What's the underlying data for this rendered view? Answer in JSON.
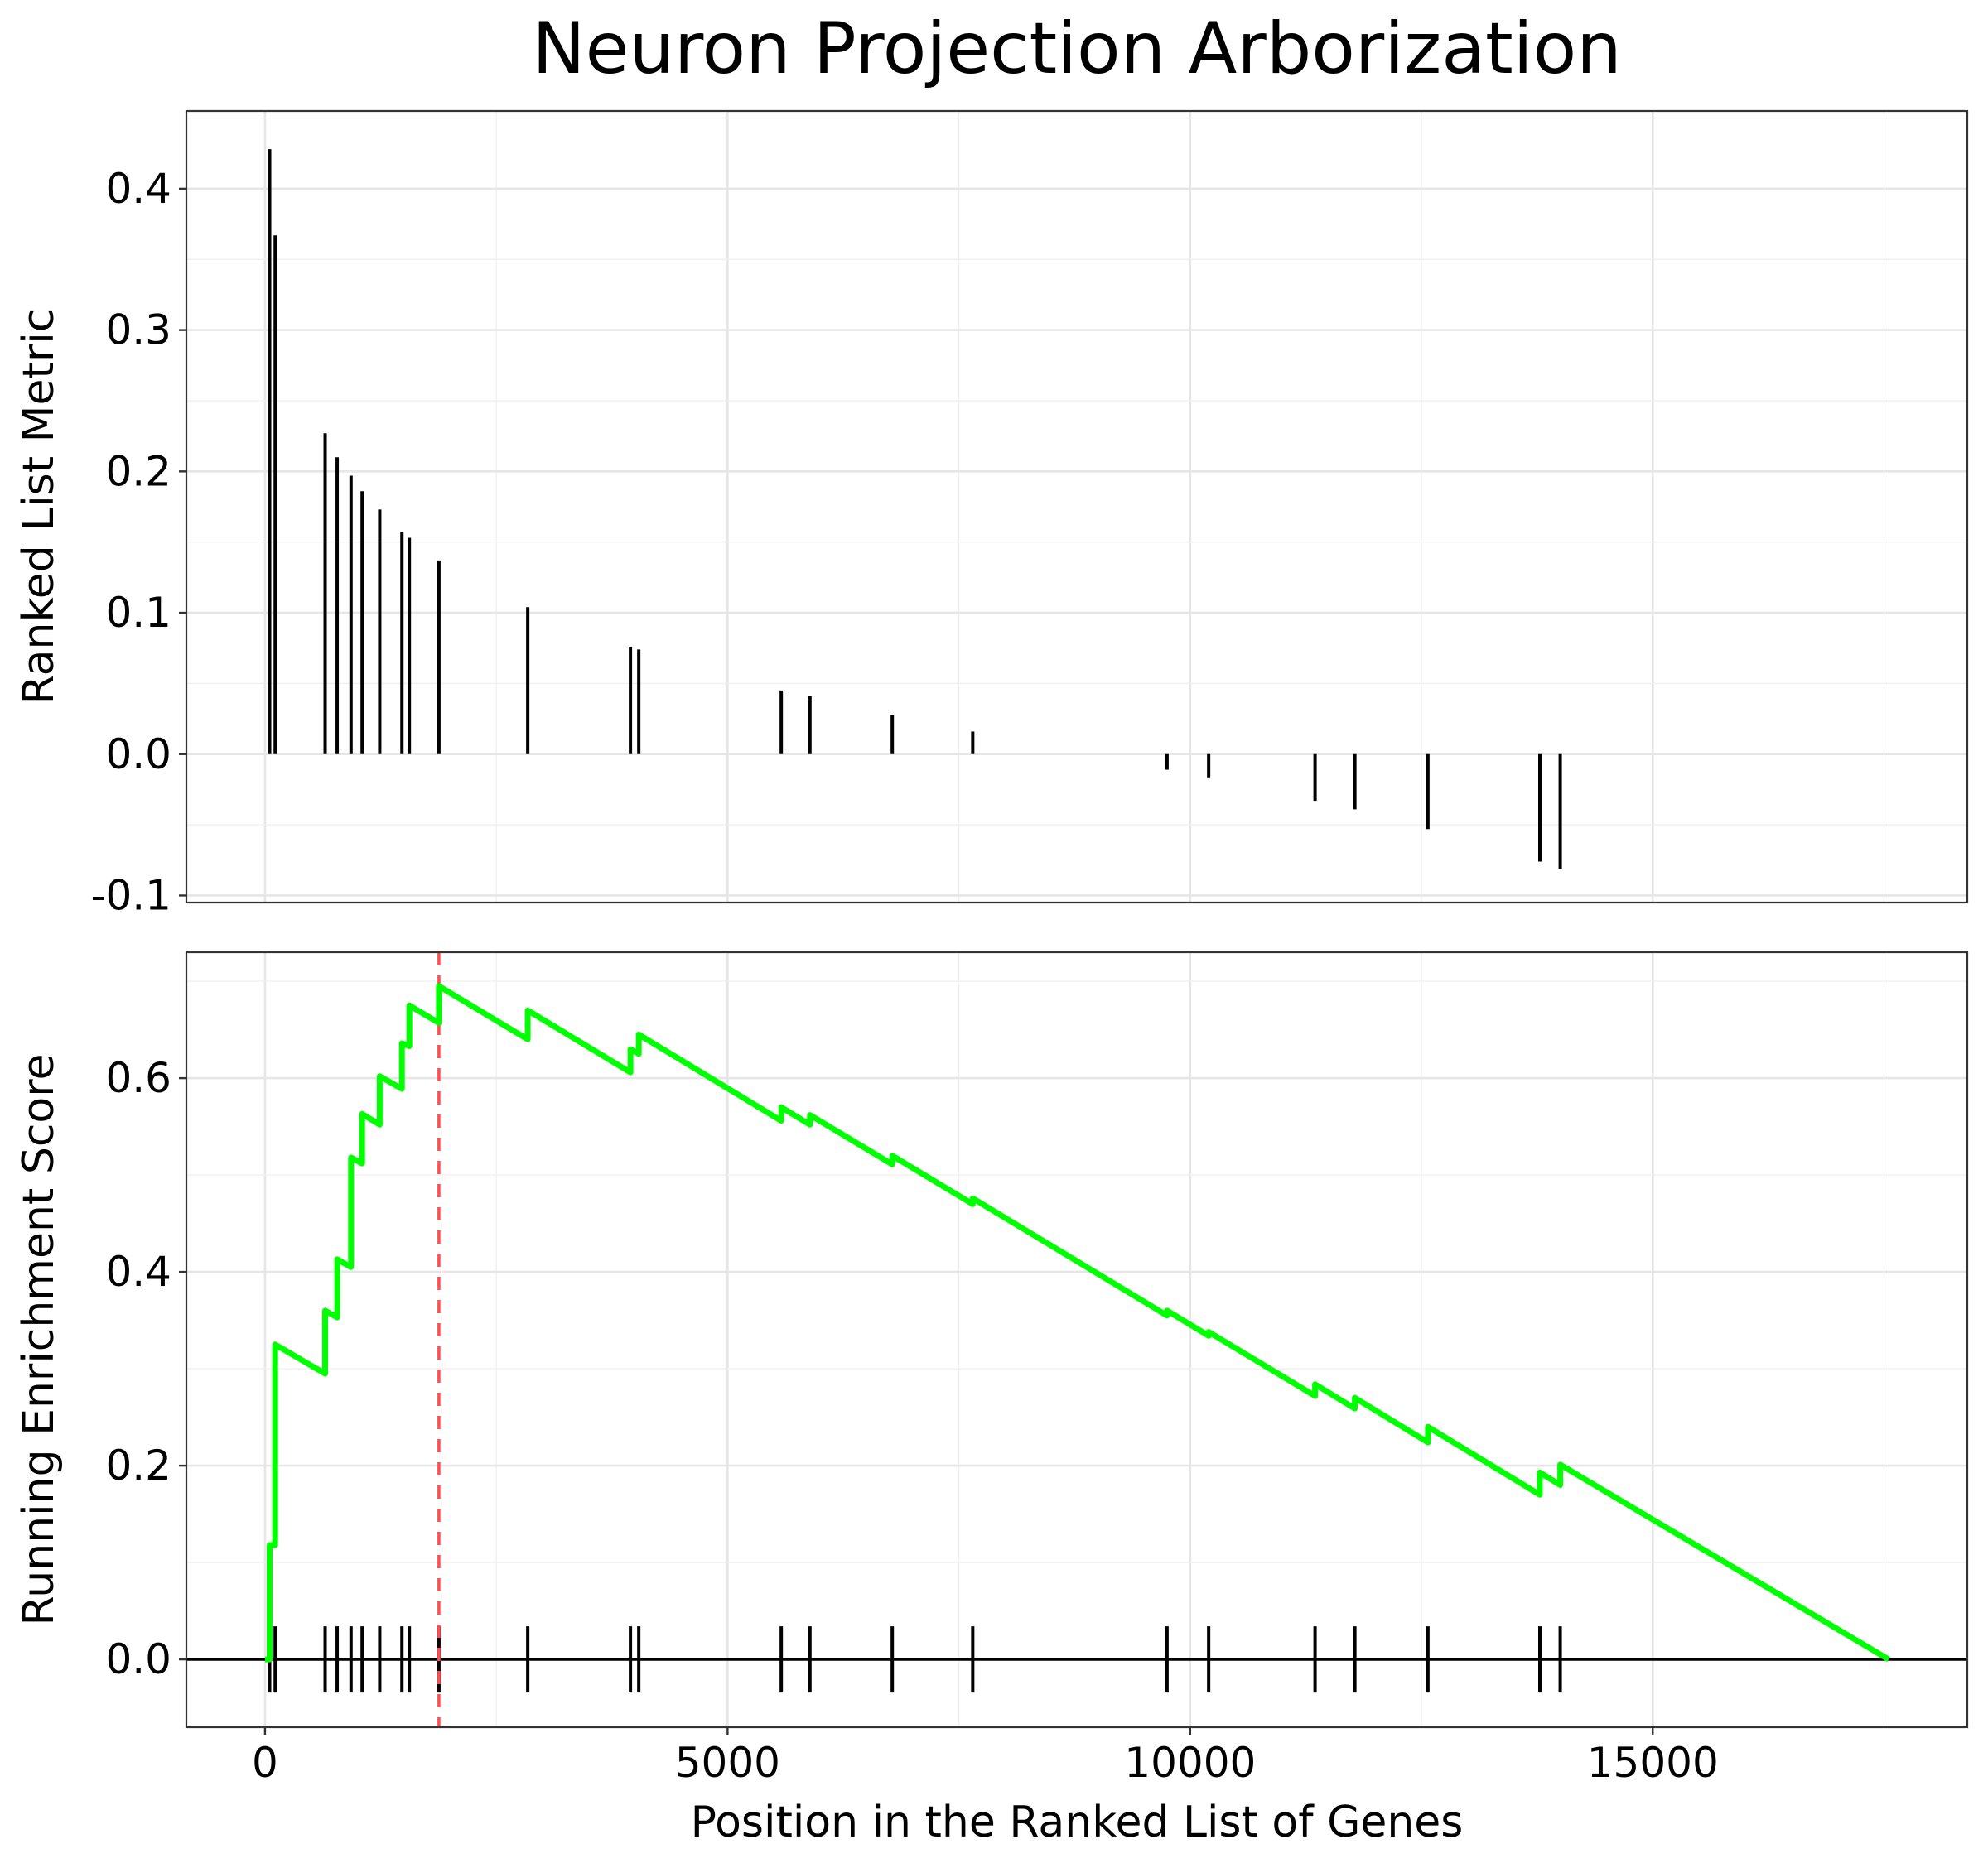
{
  "chart_data": {
    "type": "line",
    "title": "Neuron Projection Arborization",
    "xlabel": "Position in the Ranked List of Genes",
    "xlim": [
      -850,
      18400
    ],
    "x_ticks": [
      0,
      5000,
      10000,
      15000
    ],
    "x_tick_labels": [
      "0",
      "5000",
      "10000",
      "15000"
    ],
    "grid": true,
    "panels": [
      {
        "name": "ranked-metric",
        "ylabel": "Ranked List Metric",
        "ylim": [
          -0.105,
          0.455
        ],
        "y_ticks": [
          -0.1,
          0.0,
          0.1,
          0.2,
          0.3,
          0.4
        ],
        "y_tick_labels": [
          "-0.1",
          "0.0",
          "0.1",
          "0.2",
          "0.3",
          "0.4"
        ],
        "bars": {
          "x": [
            50,
            110,
            650,
            780,
            930,
            1050,
            1240,
            1480,
            1560,
            1880,
            2840,
            3950,
            4040,
            5580,
            5890,
            6780,
            7650,
            9750,
            10200,
            11350,
            11780,
            12570,
            13780,
            14000
          ],
          "values": [
            0.428,
            0.367,
            0.227,
            0.21,
            0.197,
            0.186,
            0.173,
            0.157,
            0.153,
            0.137,
            0.104,
            0.076,
            0.074,
            0.045,
            0.041,
            0.028,
            0.016,
            -0.011,
            -0.017,
            -0.033,
            -0.039,
            -0.053,
            -0.076,
            -0.081
          ]
        }
      },
      {
        "name": "running-enrichment",
        "ylabel": "Running Enrichment Score",
        "ylim": [
          -0.07,
          0.73
        ],
        "y_ticks": [
          0.0,
          0.2,
          0.4,
          0.6
        ],
        "y_tick_labels": [
          "0.0",
          "0.2",
          "0.4",
          "0.6"
        ],
        "series": [
          {
            "color": "#00ff00",
            "x": [
              0,
              50,
              50,
              110,
              110,
              650,
              650,
              780,
              780,
              930,
              930,
              1050,
              1050,
              1240,
              1240,
              1480,
              1480,
              1560,
              1560,
              1880,
              1880,
              2840,
              2840,
              3950,
              3950,
              4040,
              4040,
              5580,
              5580,
              5890,
              5890,
              6780,
              6780,
              7650,
              7650,
              9750,
              9750,
              10200,
              10200,
              11350,
              11350,
              11780,
              11780,
              12570,
              12570,
              13780,
              13780,
              14000,
              14000,
              17550
            ],
            "y": [
              0,
              0.0,
              0.118,
              0.118,
              0.325,
              0.295,
              0.36,
              0.353,
              0.413,
              0.405,
              0.518,
              0.512,
              0.563,
              0.552,
              0.602,
              0.589,
              0.636,
              0.633,
              0.675,
              0.657,
              0.695,
              0.64,
              0.67,
              0.606,
              0.63,
              0.625,
              0.645,
              0.556,
              0.57,
              0.552,
              0.562,
              0.511,
              0.52,
              0.47,
              0.476,
              0.355,
              0.36,
              0.334,
              0.338,
              0.272,
              0.284,
              0.259,
              0.27,
              0.224,
              0.24,
              0.17,
              0.193,
              0.18,
              0.201,
              0.0
            ]
          }
        ],
        "gene_ticks": [
          50,
          110,
          650,
          780,
          930,
          1050,
          1240,
          1480,
          1560,
          1880,
          2840,
          3950,
          4040,
          5580,
          5890,
          6780,
          7650,
          9750,
          10200,
          11350,
          11780,
          12570,
          13780,
          14000
        ],
        "peak_x": 1880,
        "zero_line": 0.0
      }
    ]
  }
}
